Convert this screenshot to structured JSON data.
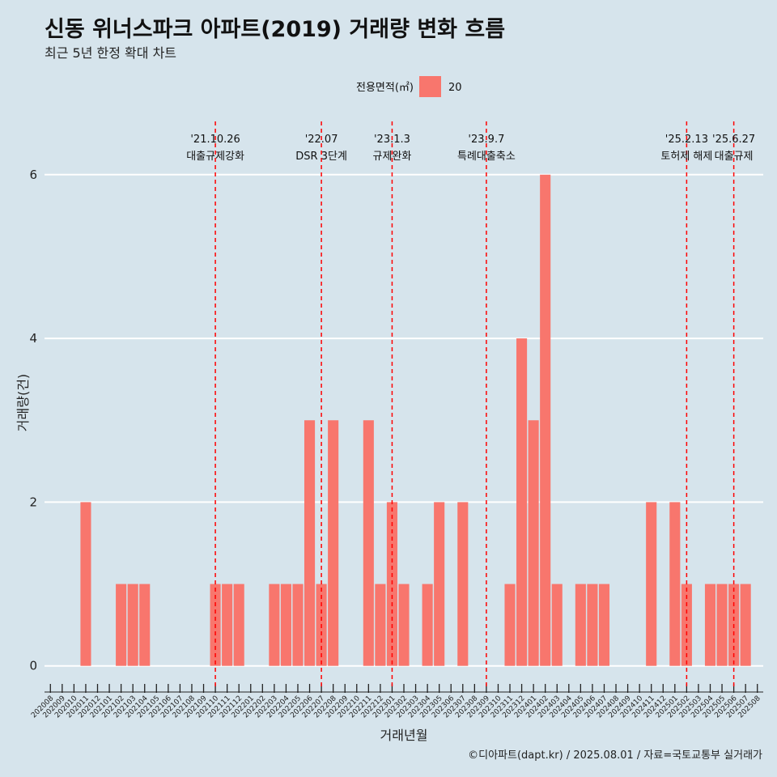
{
  "title": "신동 위너스파크 아파트(2019) 거래량 변화 흐름",
  "subtitle": "최근 5년 한정 확대 차트",
  "caption": "©디아파트(dapt.kr) / 2025.08.01 / 자료=국토교통부 실거래가",
  "colors": {
    "bar": "#f8766d",
    "event_line": "#ff0000",
    "grid": "#ffffff",
    "background": "#d6e4ec"
  },
  "chart_data": {
    "type": "bar",
    "xlabel": "거래년월",
    "ylabel": "거래량(건)",
    "ylim": [
      -0.27,
      6.7
    ],
    "yticks": [
      0,
      2,
      4,
      6
    ],
    "grid": "horizontal major lines on",
    "legend": {
      "title": "전용면적(㎡)",
      "placement": "top",
      "entries": [
        {
          "label": "20",
          "color": "#f8766d"
        }
      ]
    },
    "categories": [
      "202008",
      "202009",
      "202010",
      "202011",
      "202012",
      "202101",
      "202102",
      "202103",
      "202104",
      "202105",
      "202106",
      "202107",
      "202108",
      "202109",
      "202110",
      "202111",
      "202112",
      "202201",
      "202202",
      "202203",
      "202204",
      "202205",
      "202206",
      "202207",
      "202208",
      "202209",
      "202210",
      "202211",
      "202212",
      "202301",
      "202302",
      "202303",
      "202304",
      "202305",
      "202306",
      "202307",
      "202308",
      "202309",
      "202310",
      "202311",
      "202312",
      "202401",
      "202402",
      "202403",
      "202404",
      "202405",
      "202406",
      "202407",
      "202408",
      "202409",
      "202410",
      "202411",
      "202412",
      "202501",
      "202502",
      "202503",
      "202504",
      "202505",
      "202506",
      "202507",
      "202508"
    ],
    "series": [
      {
        "name": "20",
        "values": [
          0,
          0,
          0,
          2,
          0,
          0,
          1,
          1,
          1,
          0,
          0,
          0,
          0,
          0,
          1,
          1,
          1,
          0,
          0,
          1,
          1,
          1,
          3,
          1,
          3,
          0,
          0,
          3,
          1,
          2,
          1,
          0,
          1,
          2,
          0,
          2,
          0,
          0,
          0,
          1,
          4,
          3,
          6,
          1,
          0,
          1,
          1,
          1,
          0,
          0,
          0,
          2,
          0,
          2,
          1,
          0,
          1,
          1,
          1,
          1,
          0
        ]
      }
    ],
    "events": [
      {
        "x": "202110",
        "date": "'21.10.26",
        "label": "대출규제강화"
      },
      {
        "x": "202207",
        "date": "'22.07",
        "label": "DSR 3단계"
      },
      {
        "x": "202301",
        "date": "'23.1.3",
        "label": "규제완화"
      },
      {
        "x": "202309",
        "date": "'23.9.7",
        "label": "특례대출축소"
      },
      {
        "x": "202502",
        "date": "'25.2.13",
        "label": "토허제 해제"
      },
      {
        "x": "202506",
        "date": "'25.6.27",
        "label": "대출규제"
      }
    ]
  }
}
